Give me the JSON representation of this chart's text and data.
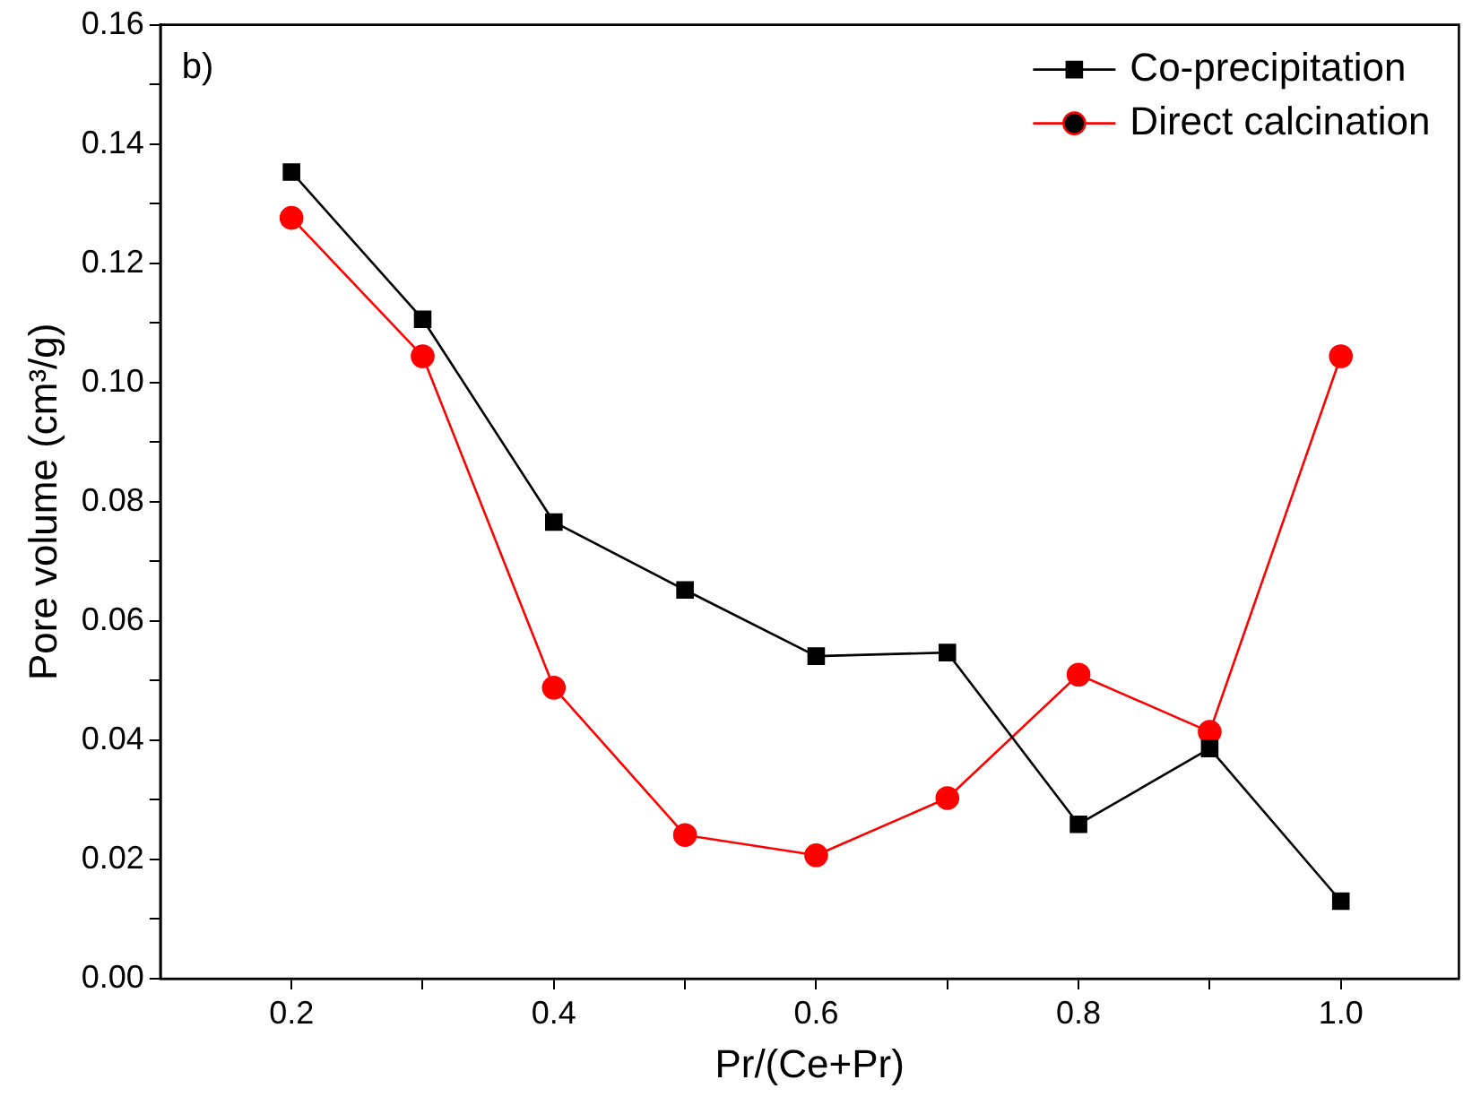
{
  "chart_data": {
    "type": "line",
    "xlabel": "Pr/(Ce+Pr)",
    "ylabel": "Pore volume (cm³/g)",
    "annotations": [
      "b)"
    ],
    "x": [
      0.2,
      0.3,
      0.4,
      0.5,
      0.6,
      0.7,
      0.8,
      0.9,
      1.0
    ],
    "series": [
      {
        "name": "Co-precipitation",
        "color": "#000000",
        "marker": "square",
        "values": [
          0.1353,
          0.1106,
          0.0766,
          0.0652,
          0.0541,
          0.0547,
          0.0259,
          0.0386,
          0.013
        ]
      },
      {
        "name": "Direct calcination",
        "color": "#ff0000",
        "marker": "circle",
        "values": [
          0.1276,
          0.1044,
          0.0488,
          0.0241,
          0.0207,
          0.0303,
          0.051,
          0.0414,
          0.1044
        ]
      }
    ],
    "xlim": [
      0.1,
      1.09
    ],
    "xticks": [
      0.2,
      {
        "value": 0.3,
        "label": null
      },
      0.4,
      {
        "value": 0.5,
        "label": null
      },
      0.6,
      {
        "value": 0.7,
        "label": null
      },
      0.8,
      {
        "value": 0.9,
        "label": null
      },
      {
        "value": 1.0,
        "label": "1.0"
      }
    ],
    "ylim": [
      0,
      0.16
    ],
    "yticks": [
      {
        "value": 0,
        "label": "0.00"
      },
      {
        "value": 0.01,
        "label": null
      },
      {
        "value": 0.02,
        "label": "0.02"
      },
      {
        "value": 0.03,
        "label": null
      },
      {
        "value": 0.04,
        "label": "0.04"
      },
      {
        "value": 0.05,
        "label": null
      },
      {
        "value": 0.06,
        "label": "0.06"
      },
      {
        "value": 0.07,
        "label": null
      },
      {
        "value": 0.08,
        "label": "0.08"
      },
      {
        "value": 0.09,
        "label": null
      },
      {
        "value": 0.1,
        "label": "0.10"
      },
      {
        "value": 0.11,
        "label": null
      },
      {
        "value": 0.12,
        "label": "0.12"
      },
      {
        "value": 0.13,
        "label": null
      },
      {
        "value": 0.14,
        "label": "0.14"
      },
      {
        "value": 0.15,
        "label": null
      },
      {
        "value": 0.16,
        "label": "0.16"
      }
    ],
    "legend": "top right",
    "grid": false,
    "line_style": "solid"
  }
}
